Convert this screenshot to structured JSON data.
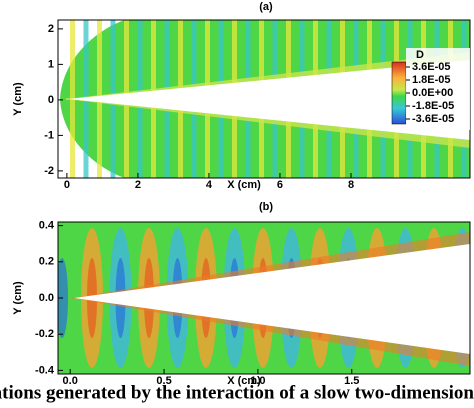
{
  "panels": [
    {
      "label": "(a)",
      "x_label": "X (cm)",
      "y_label": "Y (cm)",
      "xlim": [
        -0.25,
        11.35
      ],
      "ylim": [
        -2.2,
        2.25
      ],
      "xticks": [
        0,
        2,
        4,
        6,
        8
      ],
      "yticks": [
        -2,
        -1,
        0,
        1,
        2
      ]
    },
    {
      "label": "(b)",
      "x_label": "X (cm)",
      "y_label": "Y (cm)",
      "xlim": [
        -0.065,
        2.13
      ],
      "ylim": [
        -0.42,
        0.42
      ],
      "xticks": [
        {
          "value": 0,
          "label": "0.0"
        },
        0.5,
        {
          "value": 1,
          "label": "1.0"
        },
        1.5
      ],
      "yticks": [
        -0.4,
        -0.2,
        {
          "value": 0,
          "label": "0.0"
        },
        0.2,
        0.4
      ]
    }
  ],
  "colorbar": {
    "title": "D",
    "levels": [
      {
        "value": 3.6e-05,
        "label": "3.6E-05"
      },
      {
        "value": 1.8e-05,
        "label": "1.8E-05"
      },
      {
        "value": 0,
        "label": "0.0E+00"
      },
      {
        "value": -1.8e-05,
        "label": "-1.8E-05"
      },
      {
        "value": -3.6e-05,
        "label": "-3.6E-05"
      }
    ]
  },
  "caption": "ations generated by the interaction of a slow two-dimensions"
}
